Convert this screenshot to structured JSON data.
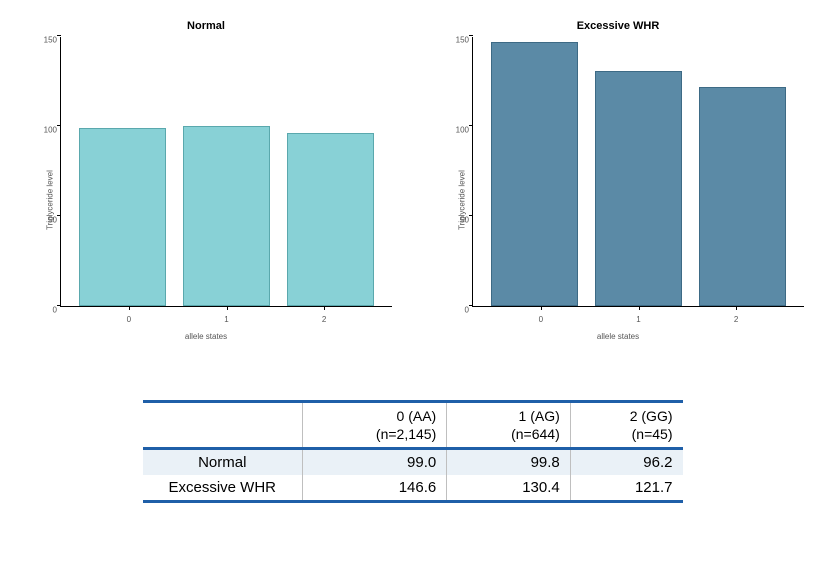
{
  "charts": {
    "ymax": 150,
    "ymin": 0,
    "y_ticks": [
      0,
      50,
      100,
      150
    ],
    "x_categories": [
      "0",
      "1",
      "2"
    ],
    "y_axis_label": "Triglyceride level",
    "x_axis_label": "allele states",
    "panel_title_fontsize": 11,
    "axis_label_fontsize": 8,
    "tick_fontsize": 8,
    "panels": [
      {
        "title": "Normal",
        "bar_color": "#88d1d6",
        "bar_border": "#5aa8ad",
        "values": [
          99.0,
          99.8,
          96.2
        ]
      },
      {
        "title": "Excessive WHR",
        "bar_color": "#5b8aa6",
        "bar_border": "#3d6a85",
        "values": [
          146.6,
          130.4,
          121.7
        ]
      }
    ]
  },
  "table": {
    "border_color": "#1f5fa8",
    "shade_color": "#eaf1f7",
    "cell_border_color": "#bfbfbf",
    "header_fontsize": 14,
    "body_fontsize": 15,
    "columns": [
      {
        "top": "0 (AA)",
        "bottom": "(n=2,145)"
      },
      {
        "top": "1 (AG)",
        "bottom": "(n=644)"
      },
      {
        "top": "2 (GG)",
        "bottom": "(n=45)"
      }
    ],
    "rows": [
      {
        "label": "Normal",
        "values": [
          "99.0",
          "99.8",
          "96.2"
        ],
        "shaded": true
      },
      {
        "label": "Excessive WHR",
        "values": [
          "146.6",
          "130.4",
          "121.7"
        ],
        "shaded": false
      }
    ]
  }
}
